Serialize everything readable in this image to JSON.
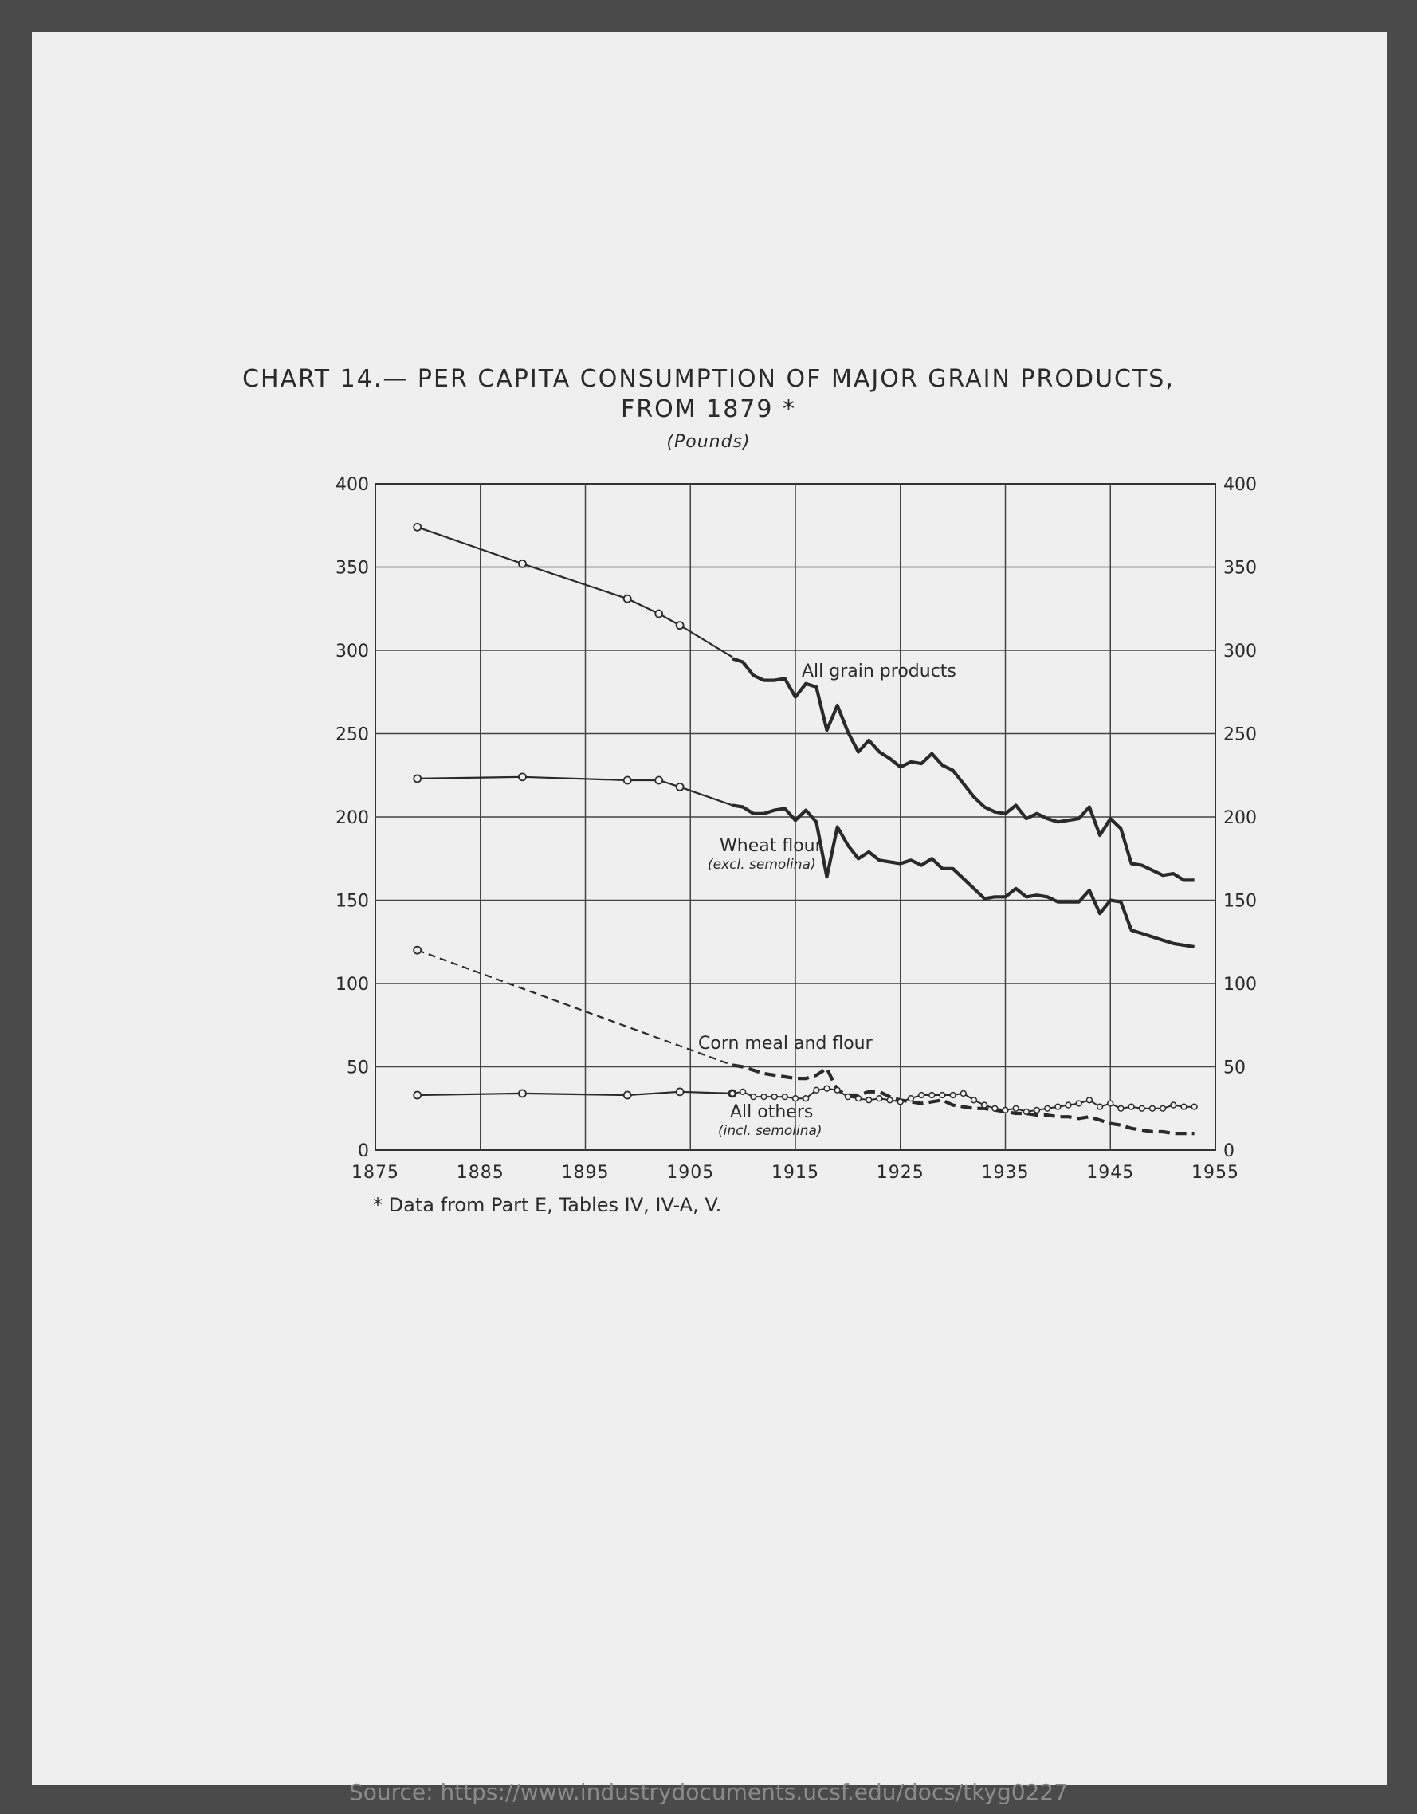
{
  "page": {
    "title_line1": "CHART 14.— PER CAPITA CONSUMPTION OF MAJOR GRAIN PRODUCTS,",
    "title_line2": "FROM 1879 *",
    "unit": "(Pounds)",
    "footnote": "* Data from Part E, Tables IV, IV-A, V.",
    "source": "Source: https://www.industrydocuments.ucsf.edu/docs/tkyg0227"
  },
  "chart_data": {
    "type": "line",
    "title": "CHART 14.— PER CAPITA CONSUMPTION OF MAJOR GRAIN PRODUCTS, FROM 1879 *",
    "subtitle": "(Pounds)",
    "xlim": [
      1875,
      1955
    ],
    "ylim": [
      0,
      400
    ],
    "x_ticks": [
      1875,
      1885,
      1895,
      1905,
      1915,
      1925,
      1935,
      1945,
      1955
    ],
    "y_ticks": [
      0,
      50,
      100,
      150,
      200,
      250,
      300,
      350,
      400
    ],
    "grid": true,
    "series": [
      {
        "name": "All grain products",
        "style": "bold",
        "early": [
          [
            1879,
            374
          ],
          [
            1889,
            352
          ],
          [
            1899,
            331
          ],
          [
            1902,
            322
          ],
          [
            1904,
            315
          ],
          [
            1909,
            296
          ]
        ],
        "annual": [
          [
            1909,
            295
          ],
          [
            1910,
            293
          ],
          [
            1911,
            285
          ],
          [
            1912,
            282
          ],
          [
            1913,
            282
          ],
          [
            1914,
            283
          ],
          [
            1915,
            272
          ],
          [
            1916,
            280
          ],
          [
            1917,
            278
          ],
          [
            1918,
            252
          ],
          [
            1919,
            267
          ],
          [
            1920,
            251
          ],
          [
            1921,
            239
          ],
          [
            1922,
            246
          ],
          [
            1923,
            239
          ],
          [
            1924,
            235
          ],
          [
            1925,
            230
          ],
          [
            1926,
            233
          ],
          [
            1927,
            232
          ],
          [
            1928,
            238
          ],
          [
            1929,
            231
          ],
          [
            1930,
            228
          ],
          [
            1931,
            220
          ],
          [
            1932,
            212
          ],
          [
            1933,
            206
          ],
          [
            1934,
            203
          ],
          [
            1935,
            202
          ],
          [
            1936,
            207
          ],
          [
            1937,
            199
          ],
          [
            1938,
            202
          ],
          [
            1939,
            199
          ],
          [
            1940,
            197
          ],
          [
            1941,
            198
          ],
          [
            1942,
            199
          ],
          [
            1943,
            206
          ],
          [
            1944,
            189
          ],
          [
            1945,
            199
          ],
          [
            1946,
            193
          ],
          [
            1947,
            172
          ],
          [
            1948,
            171
          ],
          [
            1949,
            168
          ],
          [
            1950,
            165
          ],
          [
            1951,
            166
          ],
          [
            1952,
            162
          ],
          [
            1953,
            162
          ]
        ]
      },
      {
        "name": "Wheat flour",
        "note": "(excl. semolina)",
        "style": "bold",
        "early": [
          [
            1879,
            223
          ],
          [
            1889,
            224
          ],
          [
            1899,
            222
          ],
          [
            1902,
            222
          ],
          [
            1904,
            218
          ],
          [
            1909,
            207
          ]
        ],
        "annual": [
          [
            1909,
            207
          ],
          [
            1910,
            206
          ],
          [
            1911,
            202
          ],
          [
            1912,
            202
          ],
          [
            1913,
            204
          ],
          [
            1914,
            205
          ],
          [
            1915,
            198
          ],
          [
            1916,
            204
          ],
          [
            1917,
            197
          ],
          [
            1918,
            164
          ],
          [
            1919,
            194
          ],
          [
            1920,
            183
          ],
          [
            1921,
            175
          ],
          [
            1922,
            179
          ],
          [
            1923,
            174
          ],
          [
            1924,
            173
          ],
          [
            1925,
            172
          ],
          [
            1926,
            174
          ],
          [
            1927,
            171
          ],
          [
            1928,
            175
          ],
          [
            1929,
            169
          ],
          [
            1930,
            169
          ],
          [
            1931,
            163
          ],
          [
            1932,
            157
          ],
          [
            1933,
            151
          ],
          [
            1934,
            152
          ],
          [
            1935,
            152
          ],
          [
            1936,
            157
          ],
          [
            1937,
            152
          ],
          [
            1938,
            153
          ],
          [
            1939,
            152
          ],
          [
            1940,
            149
          ],
          [
            1941,
            149
          ],
          [
            1942,
            149
          ],
          [
            1943,
            156
          ],
          [
            1944,
            142
          ],
          [
            1945,
            150
          ],
          [
            1946,
            149
          ],
          [
            1947,
            132
          ],
          [
            1948,
            130
          ],
          [
            1949,
            128
          ],
          [
            1950,
            126
          ],
          [
            1951,
            124
          ],
          [
            1952,
            123
          ],
          [
            1953,
            122
          ]
        ]
      },
      {
        "name": "Corn meal and flour",
        "style": "dashed",
        "early": [
          [
            1879,
            120
          ],
          [
            1909,
            51
          ]
        ],
        "annual": [
          [
            1909,
            51
          ],
          [
            1910,
            50
          ],
          [
            1911,
            48
          ],
          [
            1912,
            46
          ],
          [
            1913,
            45
          ],
          [
            1914,
            44
          ],
          [
            1915,
            43
          ],
          [
            1916,
            43
          ],
          [
            1917,
            45
          ],
          [
            1918,
            49
          ],
          [
            1919,
            36
          ],
          [
            1920,
            33
          ],
          [
            1921,
            33
          ],
          [
            1922,
            35
          ],
          [
            1923,
            35
          ],
          [
            1924,
            32
          ],
          [
            1925,
            30
          ],
          [
            1926,
            29
          ],
          [
            1927,
            28
          ],
          [
            1928,
            29
          ],
          [
            1929,
            30
          ],
          [
            1930,
            27
          ],
          [
            1931,
            26
          ],
          [
            1932,
            25
          ],
          [
            1933,
            25
          ],
          [
            1934,
            24
          ],
          [
            1935,
            23
          ],
          [
            1936,
            22
          ],
          [
            1937,
            22
          ],
          [
            1938,
            21
          ],
          [
            1939,
            21
          ],
          [
            1940,
            20
          ],
          [
            1941,
            20
          ],
          [
            1942,
            19
          ],
          [
            1943,
            20
          ],
          [
            1944,
            18
          ],
          [
            1945,
            16
          ],
          [
            1946,
            15
          ],
          [
            1947,
            13
          ],
          [
            1948,
            12
          ],
          [
            1949,
            11
          ],
          [
            1950,
            11
          ],
          [
            1951,
            10
          ],
          [
            1952,
            10
          ],
          [
            1953,
            10
          ]
        ]
      },
      {
        "name": "All others",
        "note": "(incl. semolina)",
        "style": "thin-with-markers",
        "early": [
          [
            1879,
            33
          ],
          [
            1889,
            34
          ],
          [
            1899,
            33
          ],
          [
            1904,
            35
          ],
          [
            1909,
            34
          ]
        ],
        "annual": [
          [
            1909,
            34
          ],
          [
            1910,
            35
          ],
          [
            1911,
            32
          ],
          [
            1912,
            32
          ],
          [
            1913,
            32
          ],
          [
            1914,
            32
          ],
          [
            1915,
            31
          ],
          [
            1916,
            31
          ],
          [
            1917,
            36
          ],
          [
            1918,
            37
          ],
          [
            1919,
            36
          ],
          [
            1920,
            32
          ],
          [
            1921,
            31
          ],
          [
            1922,
            30
          ],
          [
            1923,
            31
          ],
          [
            1924,
            30
          ],
          [
            1925,
            29
          ],
          [
            1926,
            31
          ],
          [
            1927,
            33
          ],
          [
            1928,
            33
          ],
          [
            1929,
            33
          ],
          [
            1930,
            33
          ],
          [
            1931,
            34
          ],
          [
            1932,
            30
          ],
          [
            1933,
            27
          ],
          [
            1934,
            25
          ],
          [
            1935,
            24
          ],
          [
            1936,
            25
          ],
          [
            1937,
            23
          ],
          [
            1938,
            24
          ],
          [
            1939,
            25
          ],
          [
            1940,
            26
          ],
          [
            1941,
            27
          ],
          [
            1942,
            28
          ],
          [
            1943,
            30
          ],
          [
            1944,
            26
          ],
          [
            1945,
            28
          ],
          [
            1946,
            25
          ],
          [
            1947,
            26
          ],
          [
            1948,
            25
          ],
          [
            1949,
            25
          ],
          [
            1950,
            25
          ],
          [
            1951,
            27
          ],
          [
            1952,
            26
          ],
          [
            1953,
            26
          ]
        ]
      }
    ],
    "annotations": [
      "All grain products",
      "Wheat flour",
      "(excl. semolina)",
      "Corn meal and flour",
      "All others",
      "(incl. semolina)"
    ]
  },
  "labels": {
    "all_grain": "All grain products",
    "wheat": "Wheat flour",
    "wheat_note": "(excl. semolina)",
    "corn": "Corn meal and flour",
    "others": "All others",
    "others_note": "(incl. semolina)"
  }
}
